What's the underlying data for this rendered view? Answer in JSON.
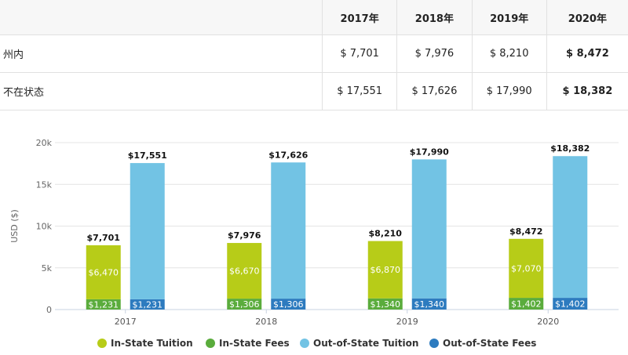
{
  "table": {
    "header": [
      "",
      "2017年",
      "2018年",
      "2019年",
      "2020年"
    ],
    "rows": [
      {
        "label": "州内",
        "values": [
          "$ 7,701",
          "$ 7,976",
          "$ 8,210",
          "$ 8,472"
        ]
      },
      {
        "label": "不在状态",
        "values": [
          "$ 17,551",
          "$ 17,626",
          "$ 17,990",
          "$ 18,382"
        ]
      }
    ]
  },
  "chart_data": {
    "type": "bar",
    "stacked": true,
    "categories": [
      "2017",
      "2018",
      "2019",
      "2020"
    ],
    "ylabel": "USD ($)",
    "ylim": [
      0,
      20000
    ],
    "yticks": [
      0,
      5000,
      10000,
      15000,
      20000
    ],
    "ytick_labels": [
      "0",
      "5k",
      "10k",
      "15k",
      "20k"
    ],
    "grid": true,
    "legend_position": "bottom",
    "stacks": [
      {
        "name": "In-State",
        "totals": [
          7701,
          7976,
          8210,
          8472
        ],
        "total_labels": [
          "$7,701",
          "$7,976",
          "$8,210",
          "$8,472"
        ],
        "segments": [
          {
            "series": "In-State Fees",
            "values": [
              1231,
              1306,
              1340,
              1402
            ],
            "labels": [
              "$1,231",
              "$1,306",
              "$1,340",
              "$1,402"
            ]
          },
          {
            "series": "In-State Tuition",
            "values": [
              6470,
              6670,
              6870,
              7070
            ],
            "labels": [
              "$6,470",
              "$6,670",
              "$6,870",
              "$7,070"
            ]
          }
        ]
      },
      {
        "name": "Out-of-State",
        "totals": [
          17551,
          17626,
          17990,
          18382
        ],
        "total_labels": [
          "$17,551",
          "$17,626",
          "$17,990",
          "$18,382"
        ],
        "segments": [
          {
            "series": "Out-of-State Fees",
            "values": [
              1231,
              1306,
              1340,
              1402
            ],
            "labels": [
              "$1,231",
              "$1,306",
              "$1,340",
              "$1,402"
            ]
          },
          {
            "series": "Out-of-State Tuition",
            "values": [
              16320,
              16320,
              16650,
              16980
            ],
            "labels": []
          }
        ]
      }
    ],
    "legend": [
      {
        "name": "In-State Tuition",
        "color": "#b7cc18"
      },
      {
        "name": "In-State Fees",
        "color": "#5aac3c"
      },
      {
        "name": "Out-of-State Tuition",
        "color": "#72c3e4"
      },
      {
        "name": "Out-of-State Fees",
        "color": "#2d7bbf"
      }
    ],
    "colors": {
      "In-State Tuition": "#b7cc18",
      "In-State Fees": "#5aac3c",
      "Out-of-State Tuition": "#72c3e4",
      "Out-of-State Fees": "#2d7bbf"
    }
  }
}
